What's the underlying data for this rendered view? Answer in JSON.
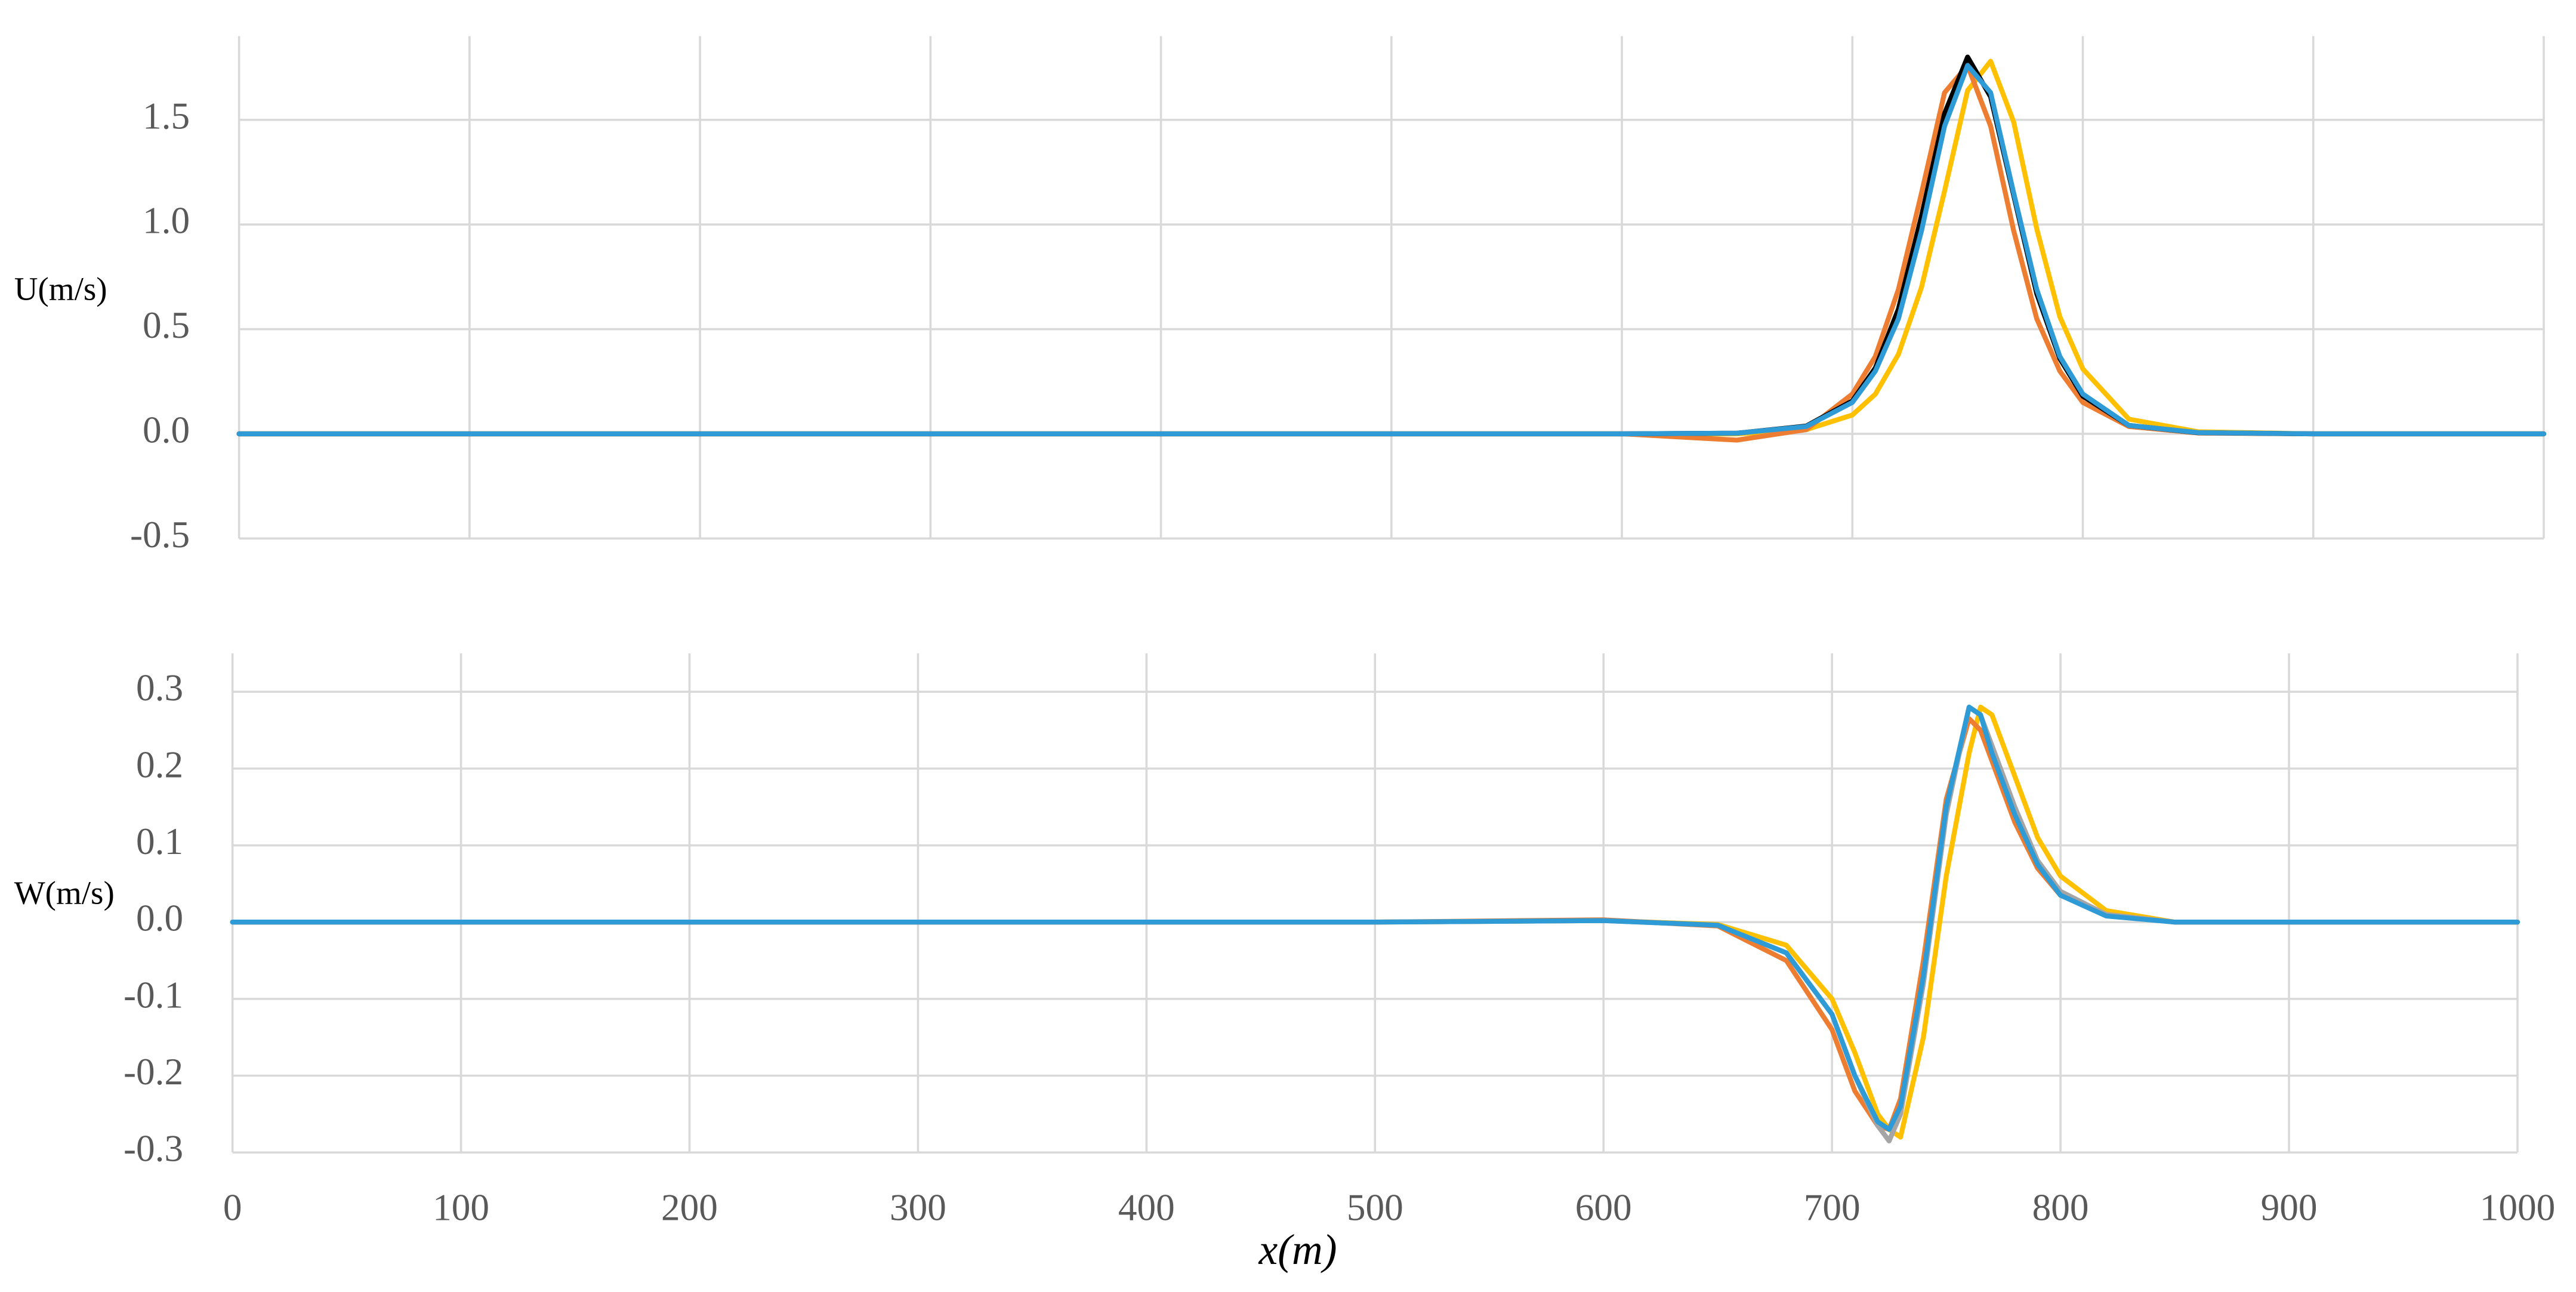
{
  "chart_data": [
    {
      "type": "line",
      "ylabel": "U(m/s)",
      "show_xtick_labels": false,
      "grid": true,
      "xlim": [
        0,
        1000
      ],
      "xticks": [
        0,
        100,
        200,
        300,
        400,
        500,
        600,
        700,
        800,
        900,
        1000
      ],
      "ylim": [
        -0.5,
        1.9
      ],
      "yticks": [
        {
          "value": -0.5,
          "label": "-0.5"
        },
        {
          "value": 0,
          "label": "0.0"
        },
        0.5,
        {
          "value": 1,
          "label": "1.0"
        },
        1.5
      ],
      "x": [
        0,
        100,
        200,
        300,
        400,
        500,
        600,
        650,
        680,
        700,
        710,
        720,
        730,
        740,
        750,
        760,
        770,
        780,
        790,
        800,
        820,
        850,
        900,
        1000
      ],
      "series": [
        {
          "color": "#ffc000",
          "values": [
            0,
            0,
            0,
            0,
            0,
            0,
            0,
            0,
            0.02,
            0.09,
            0.19,
            0.38,
            0.7,
            1.16,
            1.64,
            1.78,
            1.49,
            0.98,
            0.56,
            0.31,
            0.07,
            0.01,
            0,
            0
          ]
        },
        {
          "color": "#ed7d31",
          "values": [
            0,
            0,
            0,
            0,
            0,
            0,
            0,
            -0.03,
            0.02,
            0.19,
            0.37,
            0.69,
            1.15,
            1.63,
            1.76,
            1.47,
            0.97,
            0.55,
            0.3,
            0.15,
            0.035,
            0.004,
            0,
            0
          ]
        },
        {
          "color": "#000000",
          "values": [
            0,
            0,
            0,
            0,
            0,
            0,
            0,
            0.003,
            0.037,
            0.157,
            0.315,
            0.596,
            1.04,
            1.53,
            1.8,
            1.61,
            1.14,
            0.67,
            0.36,
            0.18,
            0.04,
            0.005,
            0,
            0
          ]
        },
        {
          "color": "#2e9bd6",
          "values": [
            0,
            0,
            0,
            0,
            0,
            0,
            0,
            0.003,
            0.035,
            0.15,
            0.3,
            0.55,
            0.97,
            1.47,
            1.76,
            1.63,
            1.15,
            0.69,
            0.37,
            0.19,
            0.04,
            0.006,
            0,
            0
          ]
        }
      ]
    },
    {
      "type": "line",
      "ylabel": "W(m/s)",
      "xlabel": "x(m)",
      "show_xtick_labels": true,
      "grid": true,
      "xlim": [
        0,
        1000
      ],
      "xticks": [
        0,
        100,
        200,
        300,
        400,
        500,
        600,
        700,
        800,
        900,
        1000
      ],
      "ylim": [
        -0.3,
        0.35
      ],
      "yticks": [
        -0.3,
        -0.2,
        -0.1,
        {
          "value": 0,
          "label": "0.0"
        },
        0.1,
        0.2,
        0.3
      ],
      "x": [
        0,
        100,
        200,
        300,
        400,
        500,
        600,
        650,
        680,
        700,
        710,
        720,
        725,
        730,
        740,
        750,
        760,
        765,
        770,
        780,
        790,
        800,
        820,
        850,
        900,
        1000
      ],
      "series": [
        {
          "color": "#ffc000",
          "values": [
            0,
            0,
            0,
            0,
            0,
            0,
            0.002,
            -0.003,
            -0.03,
            -0.1,
            -0.17,
            -0.25,
            -0.27,
            -0.28,
            -0.15,
            0.06,
            0.22,
            0.28,
            0.27,
            0.19,
            0.11,
            0.06,
            0.015,
            0,
            0,
            0
          ]
        },
        {
          "color": "#ed7d31",
          "values": [
            0,
            0,
            0,
            0,
            0,
            0,
            0.003,
            -0.005,
            -0.05,
            -0.14,
            -0.22,
            -0.265,
            -0.27,
            -0.23,
            -0.05,
            0.16,
            0.265,
            0.25,
            0.21,
            0.13,
            0.07,
            0.035,
            0.01,
            0,
            0,
            0
          ]
        },
        {
          "color": "#a5a5a5",
          "values": [
            0,
            0,
            0,
            0,
            0,
            0,
            0.002,
            -0.004,
            -0.04,
            -0.12,
            -0.2,
            -0.265,
            -0.285,
            -0.25,
            -0.08,
            0.14,
            0.28,
            0.27,
            0.23,
            0.15,
            0.08,
            0.04,
            0.01,
            0,
            0,
            0
          ]
        },
        {
          "color": "#2e9bd6",
          "values": [
            0,
            0,
            0,
            0,
            0,
            0,
            0.002,
            -0.004,
            -0.04,
            -0.12,
            -0.2,
            -0.26,
            -0.27,
            -0.24,
            -0.07,
            0.15,
            0.28,
            0.27,
            0.22,
            0.14,
            0.075,
            0.035,
            0.008,
            0,
            0,
            0
          ]
        }
      ]
    }
  ]
}
